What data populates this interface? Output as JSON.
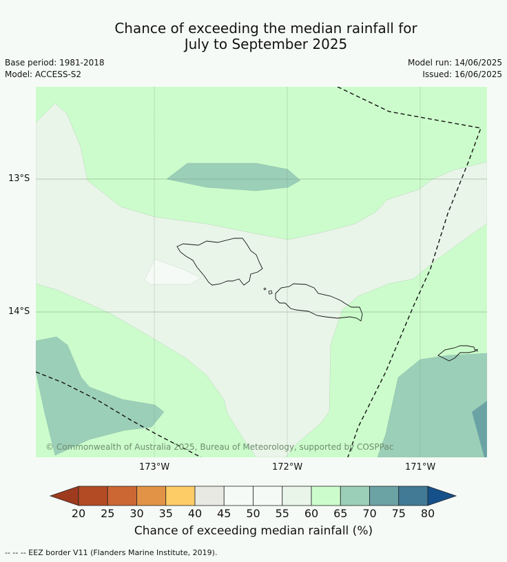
{
  "title_line1": "Chance of exceeding the median rainfall for",
  "title_line2": "July to September 2025",
  "base_period": "Base period: 1981-2018",
  "model": "Model: ACCESS-S2",
  "model_run": "Model run: 14/06/2025",
  "issued": "Issued: 16/06/2025",
  "lat_labels": [
    "13°S",
    "14°S"
  ],
  "lon_labels": [
    "173°W",
    "172°W",
    "171°W"
  ],
  "copyright": "© Commonwealth of Australia 2025, Bureau of Meteorology, supported by COSPPac",
  "colorbar": {
    "ticks": [
      "20",
      "25",
      "30",
      "35",
      "40",
      "45",
      "50",
      "55",
      "60",
      "65",
      "70",
      "75",
      "80"
    ],
    "colors": [
      "#9e3a1e",
      "#b34b24",
      "#cc6633",
      "#e39345",
      "#fdcc66",
      "#e9e9e4",
      "#f6faf6",
      "#f6faf6",
      "#e9f5e9",
      "#ccfccc",
      "#9ccfb8",
      "#6ba3a5",
      "#427a96",
      "#15508a"
    ],
    "label": "Chance of exceeding median rainfall (%)"
  },
  "footer": "--  --  -- EEZ border V11 (Flanders Marine Institute, 2019).",
  "map_colors": {
    "background_green": "#ccfccc",
    "pale_band": "#e9f5e9",
    "white_patch": "#f6faf6",
    "teal": "#9ccfb8",
    "deep_teal": "#6ba3a5"
  }
}
